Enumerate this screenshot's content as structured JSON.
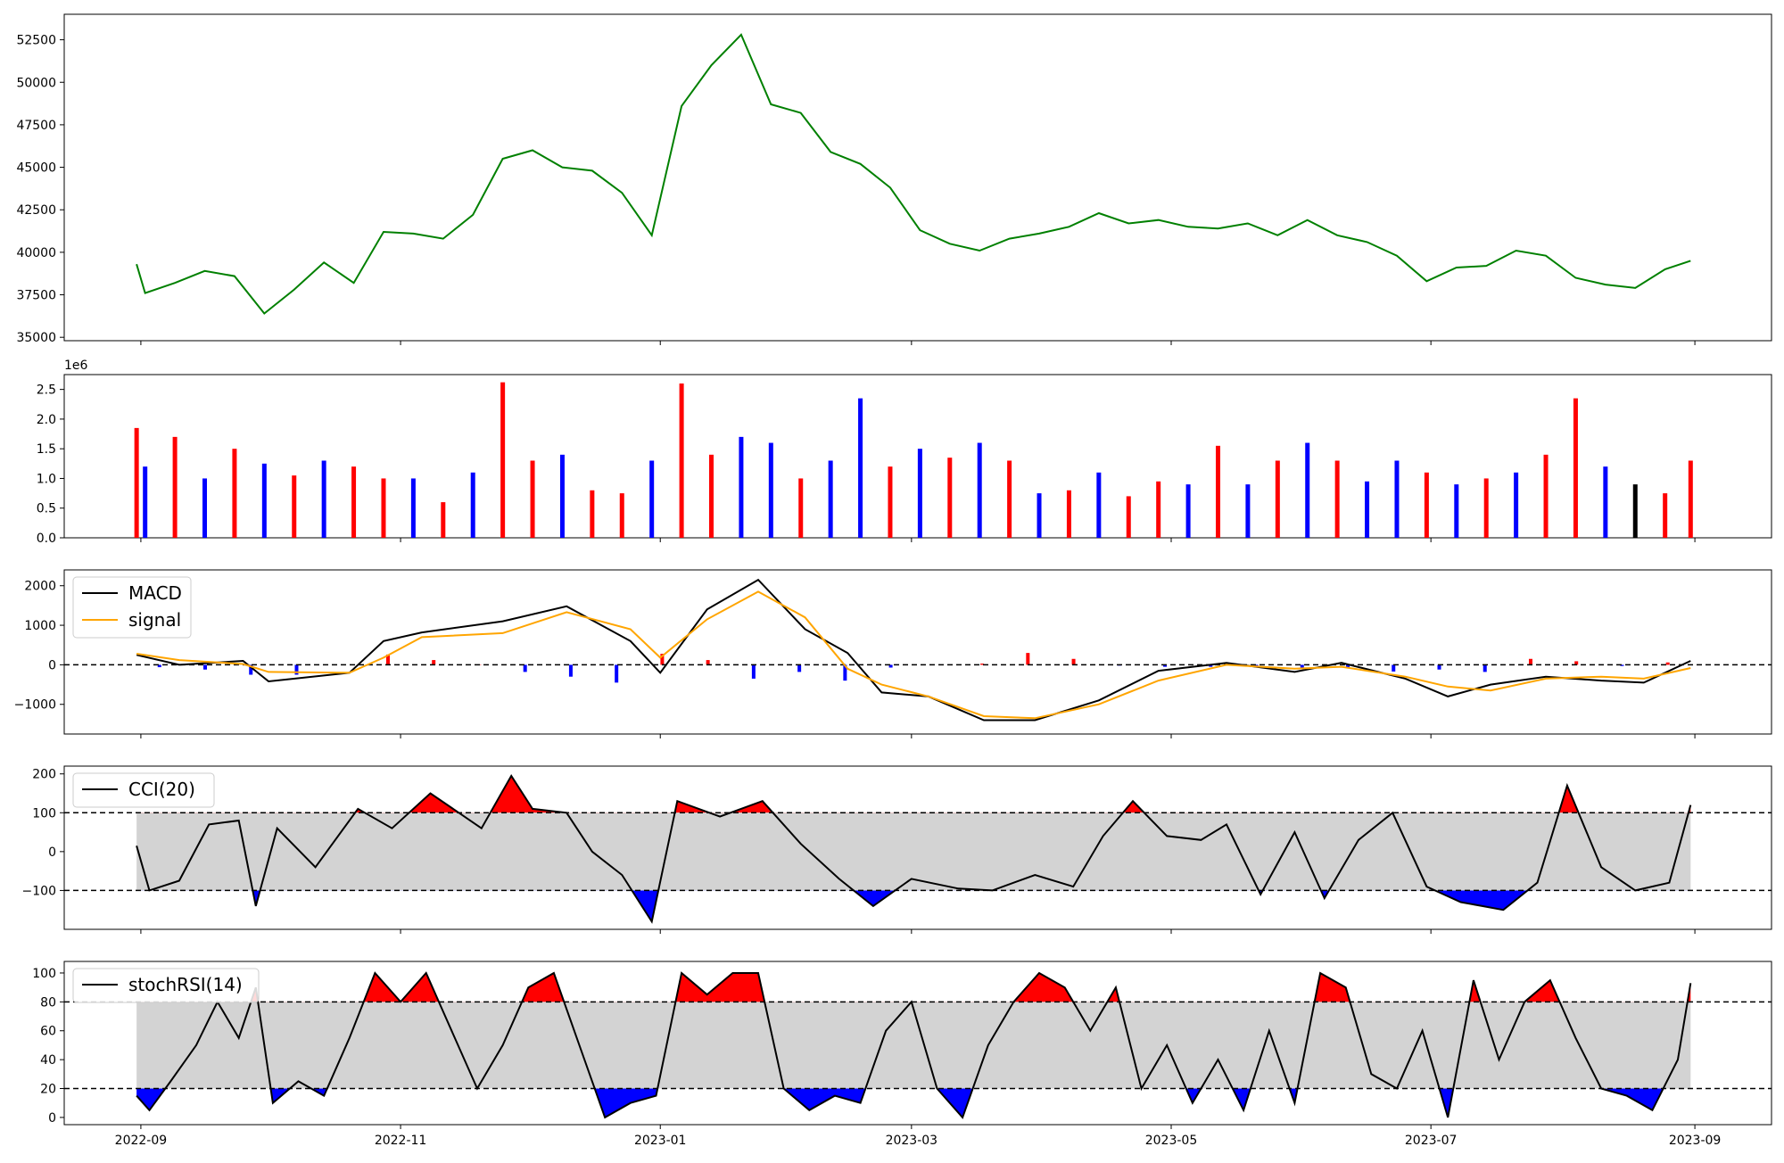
{
  "chart_data": [
    {
      "type": "line",
      "panel": "price",
      "color": "#008000",
      "ylim": [
        34800,
        54000
      ],
      "yticks": [
        "35000",
        "37500",
        "40000",
        "42500",
        "45000",
        "47500",
        "50000",
        "52500"
      ],
      "x": [
        "2022-08-31",
        "2022-09-02",
        "2022-09-09",
        "2022-09-16",
        "2022-09-23",
        "2022-09-30",
        "2022-10-07",
        "2022-10-14",
        "2022-10-21",
        "2022-10-28",
        "2022-11-04",
        "2022-11-11",
        "2022-11-18",
        "2022-11-25",
        "2022-12-02",
        "2022-12-09",
        "2022-12-16",
        "2022-12-23",
        "2022-12-30",
        "2023-01-06",
        "2023-01-13",
        "2023-01-20",
        "2023-01-27",
        "2023-02-03",
        "2023-02-10",
        "2023-02-17",
        "2023-02-24",
        "2023-03-03",
        "2023-03-10",
        "2023-03-17",
        "2023-03-24",
        "2023-03-31",
        "2023-04-07",
        "2023-04-14",
        "2023-04-21",
        "2023-04-28",
        "2023-05-05",
        "2023-05-12",
        "2023-05-19",
        "2023-05-26",
        "2023-06-02",
        "2023-06-09",
        "2023-06-16",
        "2023-06-23",
        "2023-06-30",
        "2023-07-07",
        "2023-07-14",
        "2023-07-21",
        "2023-07-28",
        "2023-08-04",
        "2023-08-11",
        "2023-08-18",
        "2023-08-25",
        "2023-08-31"
      ],
      "values": [
        39300,
        37600,
        38200,
        38900,
        38600,
        36400,
        37800,
        39400,
        38200,
        41200,
        41100,
        40800,
        42200,
        45500,
        46000,
        45000,
        44800,
        43500,
        41000,
        48600,
        51000,
        52800,
        48700,
        48200,
        45900,
        45200,
        43800,
        41300,
        40500,
        40100,
        40800,
        41100,
        41500,
        42300,
        41700,
        41900,
        41500,
        41400,
        41700,
        41000,
        41900,
        41000,
        40600,
        39800,
        38300,
        39100,
        39200,
        40100,
        39800,
        38500,
        38100,
        37900,
        39000,
        39500
      ]
    },
    {
      "type": "bar",
      "panel": "volume",
      "scale_label": "1e6",
      "ylim": [
        0,
        2.75
      ],
      "yticks": [
        "0.0",
        "0.5",
        "1.0",
        "1.5",
        "2.0",
        "2.5"
      ],
      "x": [
        "2022-08-31",
        "2022-09-02",
        "2022-09-09",
        "2022-09-16",
        "2022-09-23",
        "2022-09-30",
        "2022-10-07",
        "2022-10-14",
        "2022-10-21",
        "2022-10-28",
        "2022-11-04",
        "2022-11-11",
        "2022-11-18",
        "2022-11-25",
        "2022-12-02",
        "2022-12-09",
        "2022-12-16",
        "2022-12-23",
        "2022-12-30",
        "2023-01-06",
        "2023-01-13",
        "2023-01-20",
        "2023-01-27",
        "2023-02-03",
        "2023-02-10",
        "2023-02-17",
        "2023-02-24",
        "2023-03-03",
        "2023-03-10",
        "2023-03-17",
        "2023-03-24",
        "2023-03-31",
        "2023-04-07",
        "2023-04-14",
        "2023-04-21",
        "2023-04-28",
        "2023-05-05",
        "2023-05-12",
        "2023-05-19",
        "2023-05-26",
        "2023-06-02",
        "2023-06-09",
        "2023-06-16",
        "2023-06-23",
        "2023-06-30",
        "2023-07-07",
        "2023-07-14",
        "2023-07-21",
        "2023-07-28",
        "2023-08-04",
        "2023-08-11",
        "2023-08-18",
        "2023-08-25",
        "2023-08-31"
      ],
      "values": [
        1.85,
        1.2,
        1.7,
        1.0,
        1.5,
        1.25,
        1.05,
        1.3,
        1.2,
        1.0,
        1.0,
        0.6,
        1.1,
        2.62,
        1.3,
        1.4,
        0.8,
        0.75,
        1.3,
        2.6,
        1.4,
        1.7,
        1.6,
        1.0,
        1.3,
        2.35,
        1.2,
        1.5,
        1.35,
        1.6,
        1.3,
        0.75,
        0.8,
        1.1,
        0.7,
        0.95,
        0.9,
        1.55,
        0.9,
        1.3,
        1.6,
        1.3,
        0.95,
        1.3,
        1.1,
        0.9,
        1.0,
        1.1,
        1.4,
        2.35,
        1.2,
        0.9,
        0.75,
        1.3
      ],
      "colors": [
        "#ff0000",
        "#0000ff",
        "#ff0000",
        "#0000ff",
        "#ff0000",
        "#0000ff",
        "#ff0000",
        "#0000ff",
        "#ff0000",
        "#ff0000",
        "#0000ff",
        "#ff0000",
        "#0000ff",
        "#ff0000",
        "#ff0000",
        "#0000ff",
        "#ff0000",
        "#ff0000",
        "#0000ff",
        "#ff0000",
        "#ff0000",
        "#0000ff",
        "#0000ff",
        "#ff0000",
        "#0000ff",
        "#0000ff",
        "#ff0000",
        "#0000ff",
        "#ff0000",
        "#0000ff",
        "#ff0000",
        "#0000ff",
        "#ff0000",
        "#0000ff",
        "#ff0000",
        "#ff0000",
        "#0000ff",
        "#ff0000",
        "#0000ff",
        "#ff0000",
        "#0000ff",
        "#ff0000",
        "#0000ff",
        "#0000ff",
        "#ff0000",
        "#0000ff",
        "#ff0000",
        "#0000ff",
        "#ff0000",
        "#ff0000",
        "#0000ff",
        "#000000",
        "#ff0000",
        "#ff0000"
      ]
    },
    {
      "type": "line",
      "panel": "macd",
      "ylim": [
        -1750,
        2400
      ],
      "yticks": [
        "−1000",
        "0",
        "1000",
        "2000"
      ],
      "zero_line": 0,
      "legend": [
        "MACD",
        "signal"
      ],
      "series": [
        {
          "name": "MACD",
          "color": "#000000",
          "x": [
            "2022-08-31",
            "2022-09-10",
            "2022-09-25",
            "2022-10-01",
            "2022-10-20",
            "2022-10-28",
            "2022-11-06",
            "2022-11-25",
            "2022-12-10",
            "2022-12-25",
            "2023-01-01",
            "2023-01-12",
            "2023-01-24",
            "2023-02-04",
            "2023-02-14",
            "2023-02-22",
            "2023-03-05",
            "2023-03-18",
            "2023-03-30",
            "2023-04-14",
            "2023-04-28",
            "2023-05-14",
            "2023-05-30",
            "2023-06-10",
            "2023-06-25",
            "2023-07-05",
            "2023-07-15",
            "2023-07-28",
            "2023-08-10",
            "2023-08-20",
            "2023-08-31"
          ],
          "values": [
            250,
            0,
            100,
            -420,
            -200,
            600,
            820,
            1100,
            1480,
            600,
            -200,
            1400,
            2150,
            900,
            300,
            -700,
            -800,
            -1400,
            -1400,
            -900,
            -150,
            50,
            -180,
            50,
            -350,
            -800,
            -500,
            -300,
            -400,
            -450,
            100
          ]
        },
        {
          "name": "signal",
          "color": "#ffa500",
          "x": [
            "2022-08-31",
            "2022-09-10",
            "2022-09-25",
            "2022-10-01",
            "2022-10-20",
            "2022-10-28",
            "2022-11-06",
            "2022-11-25",
            "2022-12-10",
            "2022-12-25",
            "2023-01-01",
            "2023-01-12",
            "2023-01-24",
            "2023-02-04",
            "2023-02-14",
            "2023-02-22",
            "2023-03-05",
            "2023-03-18",
            "2023-03-30",
            "2023-04-14",
            "2023-04-28",
            "2023-05-14",
            "2023-05-30",
            "2023-06-10",
            "2023-06-25",
            "2023-07-05",
            "2023-07-15",
            "2023-07-28",
            "2023-08-10",
            "2023-08-20",
            "2023-08-31"
          ],
          "values": [
            280,
            120,
            20,
            -180,
            -200,
            180,
            700,
            800,
            1330,
            900,
            180,
            1150,
            1850,
            1200,
            -100,
            -500,
            -800,
            -1300,
            -1350,
            -1000,
            -400,
            0,
            -100,
            -50,
            -300,
            -550,
            -650,
            -350,
            -300,
            -350,
            -80
          ]
        }
      ],
      "histogram": [
        -60,
        -120,
        -250,
        -250,
        0,
        260,
        120,
        10,
        -180,
        -300,
        -450,
        280,
        120,
        -350,
        -180,
        -400,
        -70,
        0,
        30,
        300,
        150,
        -20,
        -50,
        -50,
        -70,
        -90,
        -60,
        -170,
        -120,
        -180,
        150,
        90,
        -30,
        60
      ]
    },
    {
      "type": "line",
      "panel": "cci",
      "name": "CCI(20)",
      "legend": [
        "CCI(20)"
      ],
      "ylim": [
        -200,
        220
      ],
      "yticks": [
        "−100",
        "0",
        "100",
        "200"
      ],
      "band": [
        -100,
        100
      ],
      "x": [
        "2022-08-31",
        "2022-09-03",
        "2022-09-10",
        "2022-09-17",
        "2022-09-24",
        "2022-09-28",
        "2022-10-03",
        "2022-10-12",
        "2022-10-22",
        "2022-10-30",
        "2022-11-08",
        "2022-11-20",
        "2022-11-27",
        "2022-12-02",
        "2022-12-10",
        "2022-12-16",
        "2022-12-23",
        "2022-12-30",
        "2023-01-05",
        "2023-01-15",
        "2023-01-25",
        "2023-02-03",
        "2023-02-12",
        "2023-02-20",
        "2023-03-01",
        "2023-03-12",
        "2023-03-20",
        "2023-03-30",
        "2023-04-08",
        "2023-04-15",
        "2023-04-22",
        "2023-04-30",
        "2023-05-08",
        "2023-05-14",
        "2023-05-22",
        "2023-05-30",
        "2023-06-06",
        "2023-06-14",
        "2023-06-22",
        "2023-06-30",
        "2023-07-08",
        "2023-07-18",
        "2023-07-26",
        "2023-08-02",
        "2023-08-10",
        "2023-08-18",
        "2023-08-26",
        "2023-08-31"
      ],
      "values": [
        15,
        -100,
        -75,
        70,
        80,
        -140,
        60,
        -40,
        110,
        60,
        150,
        60,
        195,
        110,
        100,
        0,
        -60,
        -180,
        130,
        90,
        130,
        20,
        -70,
        -140,
        -70,
        -95,
        -100,
        -60,
        -90,
        40,
        130,
        40,
        30,
        70,
        -110,
        50,
        -120,
        30,
        100,
        -90,
        -130,
        -150,
        -80,
        170,
        -40,
        -100,
        -80,
        120
      ]
    },
    {
      "type": "line",
      "panel": "stochrsi",
      "name": "stochRSI(14)",
      "legend": [
        "stochRSI(14)"
      ],
      "ylim": [
        -5,
        108
      ],
      "yticks": [
        "0",
        "20",
        "40",
        "60",
        "80",
        "100"
      ],
      "band": [
        20,
        80
      ],
      "x": [
        "2022-08-31",
        "2022-09-03",
        "2022-09-08",
        "2022-09-14",
        "2022-09-19",
        "2022-09-24",
        "2022-09-28",
        "2022-10-02",
        "2022-10-08",
        "2022-10-14",
        "2022-10-20",
        "2022-10-26",
        "2022-11-01",
        "2022-11-07",
        "2022-11-13",
        "2022-11-19",
        "2022-11-25",
        "2022-12-01",
        "2022-12-07",
        "2022-12-13",
        "2022-12-19",
        "2022-12-25",
        "2022-12-31",
        "2023-01-06",
        "2023-01-12",
        "2023-01-18",
        "2023-01-24",
        "2023-01-30",
        "2023-02-05",
        "2023-02-11",
        "2023-02-17",
        "2023-02-23",
        "2023-03-01",
        "2023-03-07",
        "2023-03-13",
        "2023-03-19",
        "2023-03-25",
        "2023-03-31",
        "2023-04-06",
        "2023-04-12",
        "2023-04-18",
        "2023-04-24",
        "2023-04-30",
        "2023-05-06",
        "2023-05-12",
        "2023-05-18",
        "2023-05-24",
        "2023-05-30",
        "2023-06-05",
        "2023-06-11",
        "2023-06-17",
        "2023-06-23",
        "2023-06-29",
        "2023-07-05",
        "2023-07-11",
        "2023-07-17",
        "2023-07-23",
        "2023-07-29",
        "2023-08-04",
        "2023-08-10",
        "2023-08-16",
        "2023-08-22",
        "2023-08-28",
        "2023-08-31"
      ],
      "values": [
        15,
        5,
        25,
        50,
        80,
        55,
        90,
        10,
        25,
        15,
        55,
        100,
        80,
        100,
        60,
        20,
        50,
        90,
        100,
        50,
        0,
        10,
        15,
        100,
        85,
        100,
        100,
        20,
        5,
        15,
        10,
        60,
        80,
        20,
        0,
        50,
        80,
        100,
        90,
        60,
        90,
        20,
        50,
        10,
        40,
        5,
        60,
        10,
        100,
        90,
        30,
        20,
        60,
        0,
        95,
        40,
        80,
        95,
        55,
        20,
        15,
        5,
        40,
        93
      ]
    }
  ],
  "x_axis": {
    "tick_labels": [
      "2022-09",
      "2022-11",
      "2023-01",
      "2023-03",
      "2023-05",
      "2023-07",
      "2023-09"
    ]
  }
}
